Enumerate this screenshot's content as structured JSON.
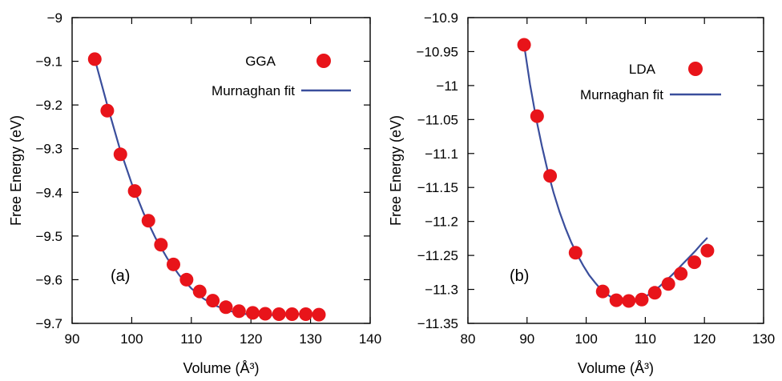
{
  "chart_data": [
    {
      "type": "scatter",
      "panel_label": "(a)",
      "xlabel": "Volume (Å³)",
      "ylabel": "Free Energy (eV)",
      "xlim": [
        90,
        140
      ],
      "ylim": [
        -9.7,
        -9.0
      ],
      "xticks": [
        90,
        100,
        110,
        120,
        130,
        140
      ],
      "yticks": [
        -9.0,
        -9.1,
        -9.2,
        -9.3,
        -9.4,
        -9.5,
        -9.6,
        -9.7
      ],
      "xtick_labels": [
        "90",
        "100",
        "110",
        "120",
        "130",
        "140"
      ],
      "ytick_labels": [
        "−9",
        "−9.1",
        "−9.2",
        "−9.3",
        "−9.4",
        "−9.5",
        "−9.6",
        "−9.7"
      ],
      "legend_position": "top-right",
      "series": [
        {
          "name": "GGA",
          "kind": "points",
          "color": "#e8141a",
          "x": [
            93.8,
            95.9,
            98.1,
            100.5,
            102.8,
            104.9,
            107.0,
            109.2,
            111.4,
            113.6,
            115.8,
            118.0,
            120.3,
            122.4,
            124.7,
            126.9,
            129.2,
            131.4
          ],
          "y": [
            -9.095,
            -9.213,
            -9.313,
            -9.397,
            -9.465,
            -9.52,
            -9.565,
            -9.6,
            -9.627,
            -9.648,
            -9.663,
            -9.672,
            -9.676,
            -9.678,
            -9.679,
            -9.679,
            -9.679,
            -9.68
          ]
        },
        {
          "name": "Murnaghan fit",
          "kind": "line",
          "color": "#3a4e9c",
          "x": [
            93.8,
            96,
            98,
            100,
            102,
            104,
            106,
            108,
            110,
            112,
            114,
            116,
            118,
            120,
            122,
            124,
            126,
            128,
            130,
            131.5
          ],
          "y": [
            -9.095,
            -9.205,
            -9.3,
            -9.38,
            -9.448,
            -9.505,
            -9.552,
            -9.59,
            -9.62,
            -9.643,
            -9.659,
            -9.67,
            -9.677,
            -9.68,
            -9.681,
            -9.681,
            -9.68,
            -9.679,
            -9.678,
            -9.678
          ]
        }
      ]
    },
    {
      "type": "scatter",
      "panel_label": "(b)",
      "xlabel": "Volume (Å³)",
      "ylabel": "Free Energy (eV)",
      "xlim": [
        80,
        130
      ],
      "ylim": [
        -11.35,
        -10.9
      ],
      "xticks": [
        80,
        90,
        100,
        110,
        120,
        130
      ],
      "yticks": [
        -10.9,
        -10.95,
        -11.0,
        -11.05,
        -11.1,
        -11.15,
        -11.2,
        -11.25,
        -11.3,
        -11.35
      ],
      "xtick_labels": [
        "80",
        "90",
        "100",
        "110",
        "120",
        "130"
      ],
      "ytick_labels": [
        "−10.9",
        "−10.95",
        "−11",
        "−11.05",
        "−11.1",
        "−11.15",
        "−11.2",
        "−11.25",
        "−11.3",
        "−11.35"
      ],
      "legend_position": "top-right",
      "series": [
        {
          "name": "LDA",
          "kind": "points",
          "color": "#e8141a",
          "x": [
            89.5,
            91.7,
            93.9,
            98.2,
            102.8,
            105.1,
            107.2,
            109.4,
            111.6,
            113.9,
            116.0,
            118.3,
            120.5
          ],
          "y": [
            -10.94,
            -11.045,
            -11.133,
            -11.246,
            -11.303,
            -11.316,
            -11.317,
            -11.315,
            -11.305,
            -11.292,
            -11.277,
            -11.26,
            -11.243
          ]
        },
        {
          "name": "Murnaghan fit",
          "kind": "line",
          "color": "#3a4e9c",
          "x": [
            89.5,
            90.5,
            91.5,
            92.5,
            93.5,
            94.5,
            95.5,
            96.5,
            97.5,
            98.5,
            99.5,
            100.5,
            101.5,
            102.5,
            103.5,
            104.5,
            105.5,
            106.5,
            107.5,
            108.5,
            109.5,
            110.5,
            111.5,
            112.5,
            113.5,
            114.5,
            115.5,
            116.5,
            117.5,
            118.5,
            119.5,
            120.5
          ],
          "y": [
            -10.94,
            -10.998,
            -11.047,
            -11.089,
            -11.126,
            -11.158,
            -11.186,
            -11.21,
            -11.231,
            -11.249,
            -11.265,
            -11.279,
            -11.29,
            -11.3,
            -11.307,
            -11.313,
            -11.316,
            -11.318,
            -11.318,
            -11.316,
            -11.313,
            -11.308,
            -11.302,
            -11.295,
            -11.287,
            -11.279,
            -11.27,
            -11.261,
            -11.252,
            -11.243,
            -11.233,
            -11.224
          ]
        }
      ]
    }
  ]
}
